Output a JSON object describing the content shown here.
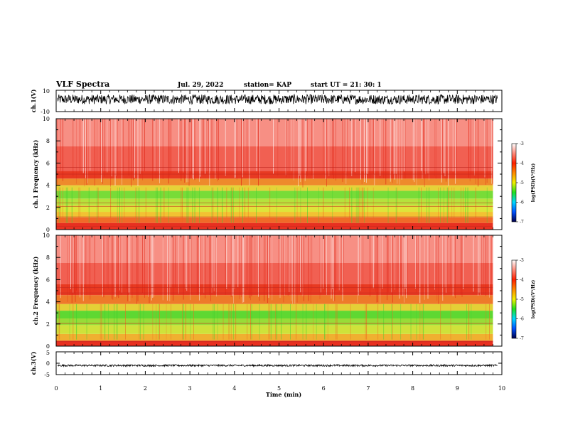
{
  "header": {
    "title": "VLF Spectra",
    "date": "Jul. 29, 2022",
    "station": "station= KAP",
    "start": "start UT = 21: 30: 1"
  },
  "chart_data": [
    {
      "type": "line",
      "name": "ch1-waveform",
      "ylabel": "ch.1(V)",
      "ylim": [
        -10,
        10
      ],
      "y_ticklabels": [
        "10",
        "-10"
      ],
      "xlim": [
        0,
        10
      ],
      "signal_range": [
        -3,
        6
      ],
      "color": "#000000"
    },
    {
      "type": "heatmap",
      "name": "ch1-spectrogram",
      "ylabel": "ch.1 Frequency (kHz)",
      "ylim": [
        0,
        10
      ],
      "y_ticklabels": [
        "0",
        "2",
        "4",
        "6",
        "8",
        "10"
      ],
      "xlim": [
        0,
        10
      ],
      "data_end_min": 9.8,
      "bands_khz": [
        {
          "from": 0.0,
          "to": 0.6,
          "color": "#e83020"
        },
        {
          "from": 0.6,
          "to": 1.1,
          "color": "#f06a28"
        },
        {
          "from": 1.1,
          "to": 1.6,
          "color": "#f2c232"
        },
        {
          "from": 1.6,
          "to": 2.2,
          "color": "#dfe43a"
        },
        {
          "from": 2.2,
          "to": 2.8,
          "color": "#b6e23c"
        },
        {
          "from": 2.8,
          "to": 3.5,
          "color": "#78dc38"
        },
        {
          "from": 3.5,
          "to": 4.0,
          "color": "#e6d238"
        },
        {
          "from": 4.0,
          "to": 4.6,
          "color": "#ee8a2c"
        },
        {
          "from": 4.6,
          "to": 5.3,
          "color": "#e83a22"
        },
        {
          "from": 5.3,
          "to": 7.5,
          "color": "#f16052"
        },
        {
          "from": 7.5,
          "to": 10.0,
          "color": "#f78f84"
        }
      ],
      "lines_khz": [
        0.3,
        1.15,
        2.1,
        2.4,
        5.0,
        5.6
      ]
    },
    {
      "type": "heatmap",
      "name": "ch2-spectrogram",
      "ylabel": "ch.2 Frequency (kHz)",
      "ylim": [
        0,
        10
      ],
      "y_ticklabels": [
        "0",
        "2",
        "4",
        "6",
        "8",
        "10"
      ],
      "xlim": [
        0,
        10
      ],
      "data_end_min": 9.8,
      "bands_khz": [
        {
          "from": 0.0,
          "to": 0.5,
          "color": "#e83020"
        },
        {
          "from": 0.5,
          "to": 1.1,
          "color": "#f0b030"
        },
        {
          "from": 1.1,
          "to": 1.9,
          "color": "#cfe23a"
        },
        {
          "from": 1.9,
          "to": 2.5,
          "color": "#98dc38"
        },
        {
          "from": 2.5,
          "to": 3.2,
          "color": "#5ed832"
        },
        {
          "from": 3.2,
          "to": 3.8,
          "color": "#e4d036"
        },
        {
          "from": 3.8,
          "to": 4.6,
          "color": "#ee7a2a"
        },
        {
          "from": 4.6,
          "to": 5.6,
          "color": "#e83a22"
        },
        {
          "from": 5.6,
          "to": 7.5,
          "color": "#f16052"
        },
        {
          "from": 7.5,
          "to": 10.0,
          "color": "#f78f84"
        }
      ],
      "lines_khz": [
        0.4,
        2.05,
        4.8,
        5.3
      ]
    },
    {
      "type": "line",
      "name": "ch3-waveform",
      "ylabel": "ch.3(V)",
      "ylim": [
        -5,
        5
      ],
      "y_ticklabels": [
        "5",
        "0",
        "-5"
      ],
      "xlim": [
        0,
        10
      ],
      "signal_range": [
        -1.4,
        -0.6
      ],
      "color": "#000000"
    }
  ],
  "time_axis": {
    "label": "Time (min)",
    "ticklabels": [
      "0",
      "1",
      "2",
      "3",
      "4",
      "5",
      "6",
      "7",
      "8",
      "9",
      "10"
    ]
  },
  "colorbar": {
    "label": "log(PSD)(V²/Hz)",
    "range": [
      -7,
      -3
    ],
    "ticklabels": [
      "-3",
      "-4",
      "-5",
      "-6",
      "-7"
    ],
    "stops": [
      "#00004a",
      "#0050ff",
      "#00d8ff",
      "#20e020",
      "#f0f000",
      "#ff8a00",
      "#ff2000",
      "#ff8a7a",
      "#ffffff"
    ]
  }
}
